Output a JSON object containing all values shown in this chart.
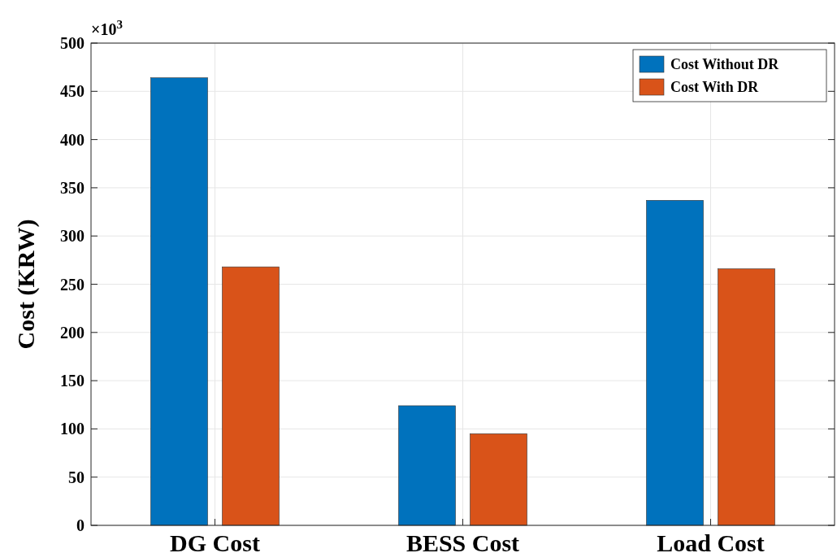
{
  "chart_data": {
    "type": "bar",
    "ylabel": "Cost (KRW)",
    "categories": [
      "DG Cost",
      "BESS Cost",
      "Load Cost"
    ],
    "series": [
      {
        "name": "Cost Without DR",
        "color": "#0072bd",
        "values": [
          464,
          124,
          337
        ]
      },
      {
        "name": "Cost With DR",
        "color": "#d95319",
        "values": [
          268,
          95,
          266
        ]
      }
    ],
    "ylim": [
      0,
      500
    ],
    "yticks": [
      0,
      50,
      100,
      150,
      200,
      250,
      300,
      350,
      400,
      450,
      500
    ],
    "grid": true,
    "legend": "top right",
    "annotations": [
      "×10$^{3}$"
    ]
  }
}
